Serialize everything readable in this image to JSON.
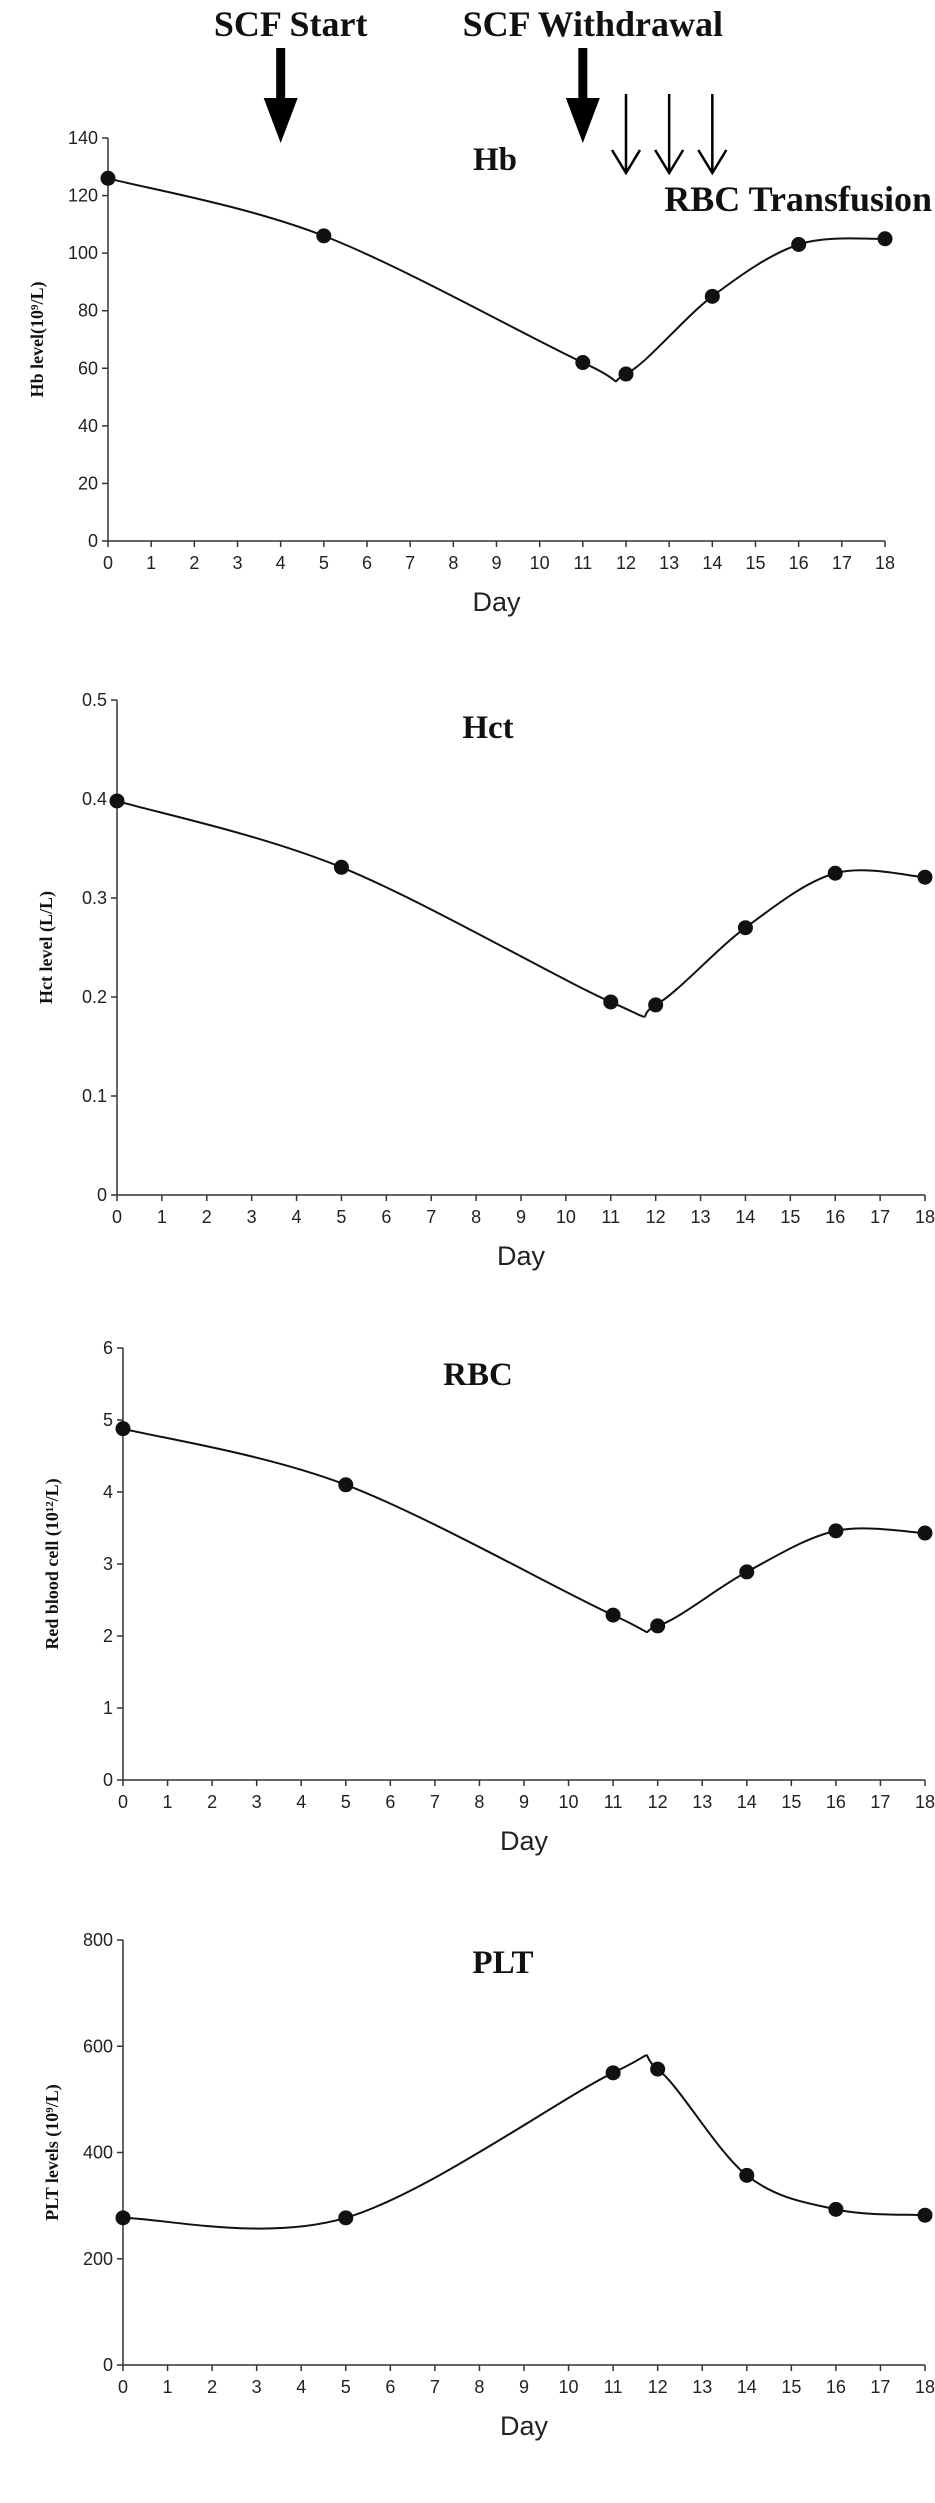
{
  "annotations": {
    "scf_start": "SCF Start",
    "scf_withdrawal": "SCF Withdrawal",
    "rbc_transfusion": "RBC Transfusion",
    "scf_start_day": 4,
    "scf_withdrawal_day": 11,
    "rbc_transfusion_days": [
      12,
      13,
      14
    ]
  },
  "chart_data": [
    {
      "type": "line",
      "title": "Hb",
      "xlabel": "Day",
      "ylabel": "Hb level(10⁹/L)",
      "xlim": [
        0,
        18
      ],
      "ylim": [
        0,
        140
      ],
      "xticks": [
        0,
        1,
        2,
        3,
        4,
        5,
        6,
        7,
        8,
        9,
        10,
        11,
        12,
        13,
        14,
        15,
        16,
        17,
        18
      ],
      "yticks": [
        0,
        20,
        40,
        60,
        80,
        100,
        120,
        140
      ],
      "series": [
        {
          "x": [
            0,
            5,
            11,
            12,
            14,
            16,
            18
          ],
          "values": [
            126,
            106,
            62,
            58,
            85,
            103,
            105
          ]
        }
      ]
    },
    {
      "type": "line",
      "title": "Hct",
      "xlabel": "Day",
      "ylabel": "Hct level (L/L)",
      "xlim": [
        0,
        18
      ],
      "ylim": [
        0,
        0.5
      ],
      "xticks": [
        0,
        1,
        2,
        3,
        4,
        5,
        6,
        7,
        8,
        9,
        10,
        11,
        12,
        13,
        14,
        15,
        16,
        17,
        18
      ],
      "yticks": [
        0,
        0.1,
        0.2,
        0.3,
        0.4,
        0.5
      ],
      "series": [
        {
          "x": [
            0,
            5,
            11,
            12,
            14,
            16,
            18
          ],
          "values": [
            0.398,
            0.331,
            0.195,
            0.192,
            0.27,
            0.325,
            0.321
          ]
        }
      ]
    },
    {
      "type": "line",
      "title": "RBC",
      "xlabel": "Day",
      "ylabel": "Red blood cell (10¹²/L)",
      "xlim": [
        0,
        18
      ],
      "ylim": [
        0,
        6
      ],
      "xticks": [
        0,
        1,
        2,
        3,
        4,
        5,
        6,
        7,
        8,
        9,
        10,
        11,
        12,
        13,
        14,
        15,
        16,
        17,
        18
      ],
      "yticks": [
        0,
        1,
        2,
        3,
        4,
        5,
        6
      ],
      "series": [
        {
          "x": [
            0,
            5,
            11,
            12,
            14,
            16,
            18
          ],
          "values": [
            4.88,
            4.1,
            2.29,
            2.14,
            2.89,
            3.46,
            3.43
          ]
        }
      ]
    },
    {
      "type": "line",
      "title": "PLT",
      "xlabel": "Day",
      "ylabel": "PLT levels (10⁹/L)",
      "xlim": [
        0,
        18
      ],
      "ylim": [
        0,
        800
      ],
      "xticks": [
        0,
        1,
        2,
        3,
        4,
        5,
        6,
        7,
        8,
        9,
        10,
        11,
        12,
        13,
        14,
        15,
        16,
        17,
        18
      ],
      "yticks": [
        0,
        200,
        400,
        600,
        800
      ],
      "series": [
        {
          "x": [
            0,
            5,
            11,
            12,
            14,
            16,
            18
          ],
          "values": [
            277,
            277,
            550,
            557,
            357,
            293,
            282
          ]
        }
      ]
    }
  ]
}
